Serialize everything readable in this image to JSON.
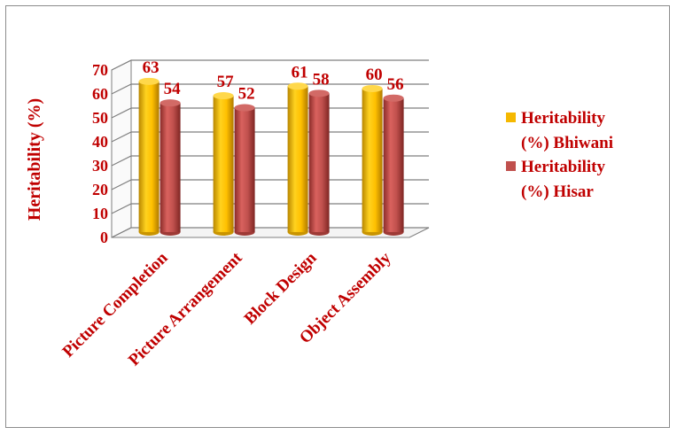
{
  "chart_data": {
    "type": "bar",
    "categories": [
      "Picture Completion",
      "Picture Arrangement",
      "Block Design",
      "Object Assembly"
    ],
    "series": [
      {
        "name": "Heritability (%) Bhiwani",
        "values": [
          63,
          57,
          61,
          60
        ],
        "color": "#f5b800"
      },
      {
        "name": "Heritability (%) Hisar",
        "values": [
          54,
          52,
          58,
          56
        ],
        "color": "#c0504d"
      }
    ],
    "ylabel": "Heritability (%)",
    "xlabel": "",
    "ylim": [
      0,
      70
    ],
    "yticks": [
      "0",
      "10",
      "20",
      "30",
      "40",
      "50",
      "60",
      "70"
    ],
    "grid": true,
    "legend_position": "right",
    "legend_lines": [
      [
        "Heritability",
        "(%) Bhiwani"
      ],
      [
        "Heritability",
        "(%) Hisar"
      ]
    ]
  }
}
